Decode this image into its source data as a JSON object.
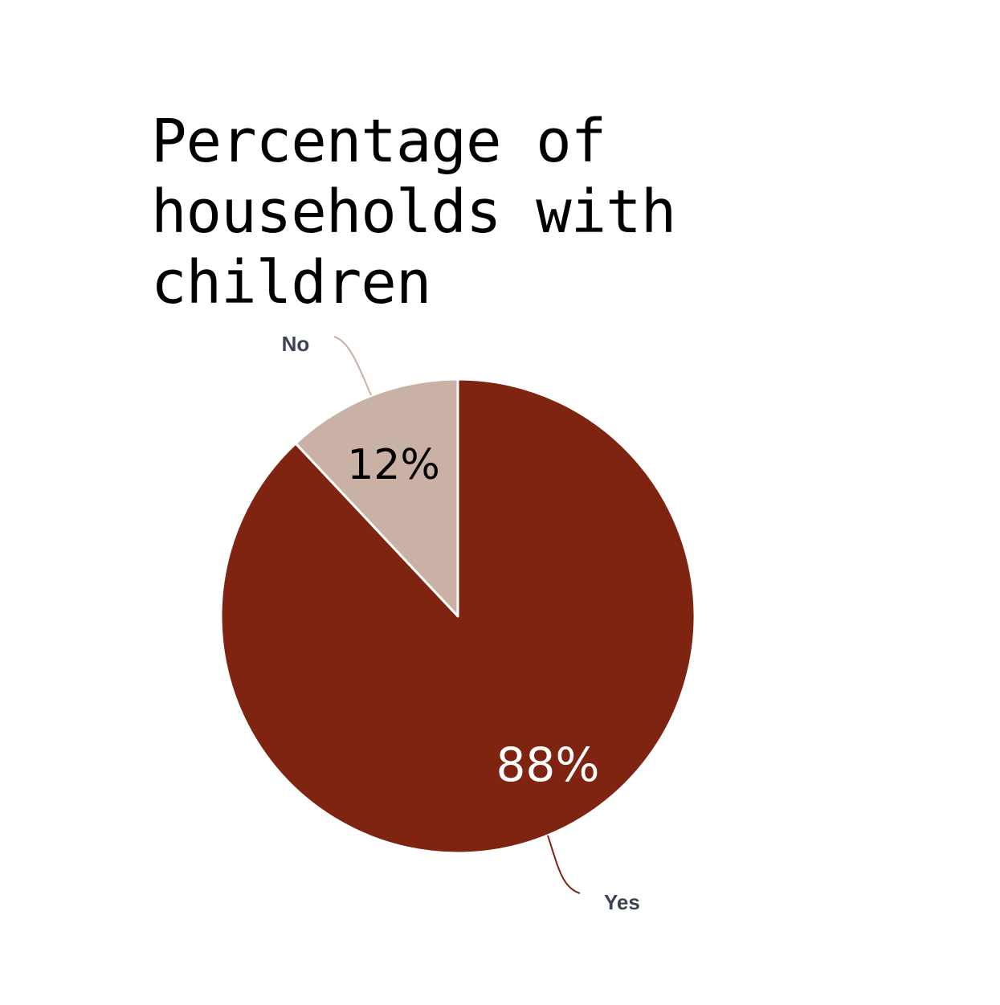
{
  "chart_data": {
    "type": "pie",
    "title": "Percentage of households with children",
    "slices": [
      {
        "label": "Yes",
        "value": 88,
        "value_label": "88%",
        "color": "#7e2410",
        "text_color": "#ffffff"
      },
      {
        "label": "No",
        "value": 12,
        "value_label": "12%",
        "color": "#c9b1a6",
        "text_color": "#000000"
      }
    ],
    "legend": "callout labels outside slices",
    "category_label_color": "#3b4450"
  }
}
